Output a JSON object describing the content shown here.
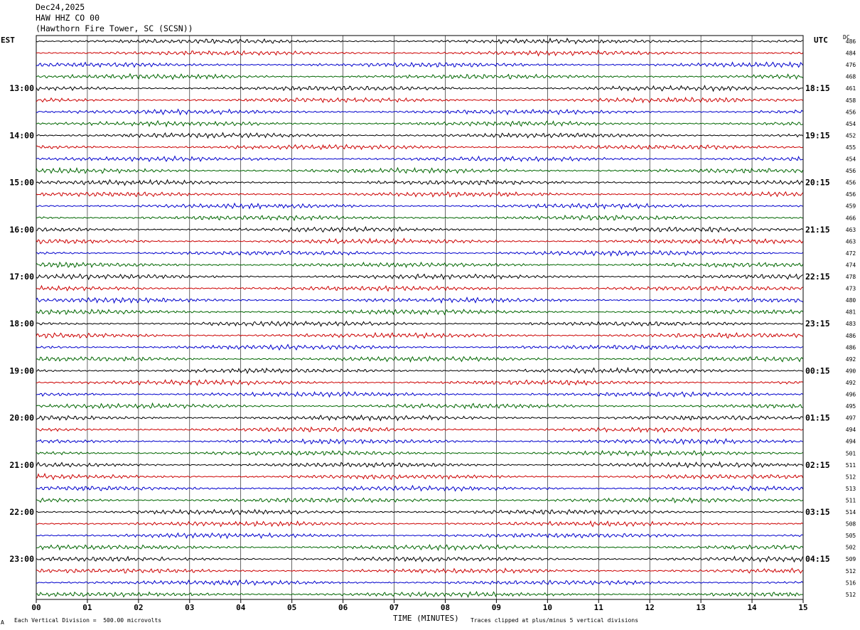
{
  "header": {
    "date": "Dec24,2025",
    "station": "HAW HHZ CO 00",
    "location": "(Hawthorn Fire Tower, SC (SCSN))"
  },
  "left_axis_label": "EST",
  "right_axis_label": "UTC",
  "dc_label": "DC",
  "footer": {
    "scale_note": "Each Vertical Division =  500.00 microvolts",
    "clip_note": "Traces clipped at plus/minus 5 vertical divisions",
    "corner_mark": "A"
  },
  "chart_data": {
    "type": "line",
    "title": "",
    "xlabel": "TIME (MINUTES)",
    "x_ticks": [
      "00",
      "01",
      "02",
      "03",
      "04",
      "05",
      "06",
      "07",
      "08",
      "09",
      "10",
      "11",
      "12",
      "13",
      "14",
      "15"
    ],
    "xlim": [
      0,
      15
    ],
    "trace_colors": [
      "#000000",
      "#cc0000",
      "#0000cc",
      "#006600"
    ],
    "grid": true,
    "est_hour_labels": [
      "13:00",
      "14:00",
      "15:00",
      "16:00",
      "17:00",
      "18:00",
      "19:00",
      "20:00",
      "21:00",
      "22:00",
      "23:00"
    ],
    "utc_hour_labels": [
      "18:15",
      "19:15",
      "20:15",
      "21:15",
      "22:15",
      "23:15",
      "00:15",
      "01:15",
      "02:15",
      "03:15",
      "04:15"
    ],
    "dc_offsets": [
      486,
      484,
      476,
      468,
      461,
      458,
      456,
      454,
      452,
      455,
      454,
      456,
      456,
      456,
      459,
      466,
      463,
      463,
      472,
      474,
      478,
      473,
      480,
      481,
      483,
      486,
      486,
      492,
      490,
      492,
      496,
      495,
      497,
      494,
      494,
      501,
      511,
      512,
      513,
      511,
      514,
      508,
      505,
      502,
      509,
      512,
      516,
      512
    ]
  }
}
